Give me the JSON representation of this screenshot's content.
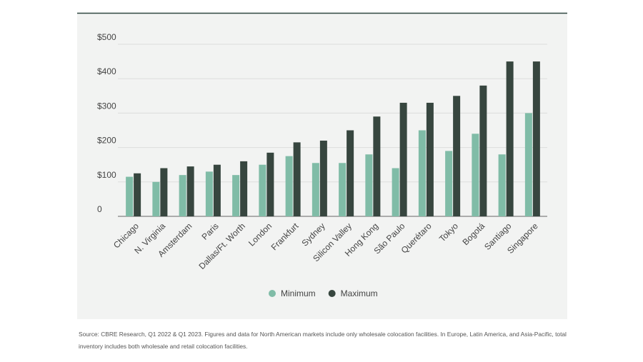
{
  "chart_data": {
    "type": "bar",
    "categories": [
      "Chicago",
      "N. Virginia",
      "Amsterdam",
      "Paris",
      "Dallas/Ft. Worth",
      "London",
      "Frankfurt",
      "Sydney",
      "Silicon Valley",
      "Hong Kong",
      "São Paulo",
      "Querétaro",
      "Tokyo",
      "Bogotá",
      "Santiago",
      "Singapore"
    ],
    "series": [
      {
        "name": "Minimum",
        "color": "#80bca7",
        "values": [
          115,
          100,
          120,
          130,
          120,
          150,
          175,
          155,
          155,
          180,
          140,
          250,
          190,
          240,
          180,
          300
        ]
      },
      {
        "name": "Maximum",
        "color": "#37463f",
        "values": [
          125,
          140,
          145,
          150,
          160,
          185,
          215,
          220,
          250,
          290,
          330,
          330,
          350,
          380,
          450,
          450
        ]
      }
    ],
    "ylim": [
      0,
      500
    ],
    "yticks": [
      0,
      {
        "value": 100,
        "label": "$100"
      },
      {
        "value": 200,
        "label": "$200"
      },
      {
        "value": 300,
        "label": "$300"
      },
      {
        "value": 400,
        "label": "$400"
      },
      {
        "value": 500,
        "label": "$500"
      }
    ],
    "grid": true,
    "legend": "bottom",
    "source": "Source: CBRE Research, Q1 2022 & Q1 2023. Figures and data for North American markets include only wholesale colocation facilities. In Europe, Latin America, and Asia-Pacific, total inventory includes both wholesale and retail colocation facilities."
  }
}
